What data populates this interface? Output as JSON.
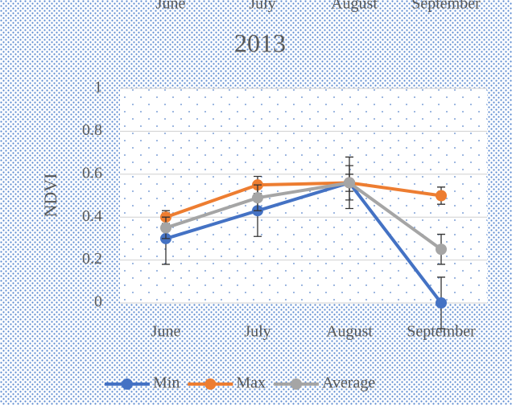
{
  "chart_data": {
    "type": "line",
    "title": "2013",
    "y_label": "NDVI",
    "categories": [
      "June",
      "July",
      "August",
      "September"
    ],
    "series": [
      {
        "name": "Min",
        "color": "#4472c4",
        "values": [
          0.3,
          0.43,
          0.56,
          0.0
        ],
        "errors": [
          0.12,
          0.12,
          0.12,
          0.12
        ]
      },
      {
        "name": "Max",
        "color": "#ed7d31",
        "values": [
          0.4,
          0.55,
          0.56,
          0.5
        ],
        "errors": [
          0.03,
          0.04,
          0.04,
          0.04
        ]
      },
      {
        "name": "Average",
        "color": "#a5a5a5",
        "values": [
          0.35,
          0.49,
          0.56,
          0.25
        ],
        "errors": [
          0.05,
          0.06,
          0.08,
          0.07
        ]
      }
    ],
    "ylim": [
      0,
      1
    ],
    "yticks": [
      0,
      0.2,
      0.4,
      0.6,
      0.8,
      1
    ],
    "grid": true,
    "legend": "bottom"
  }
}
